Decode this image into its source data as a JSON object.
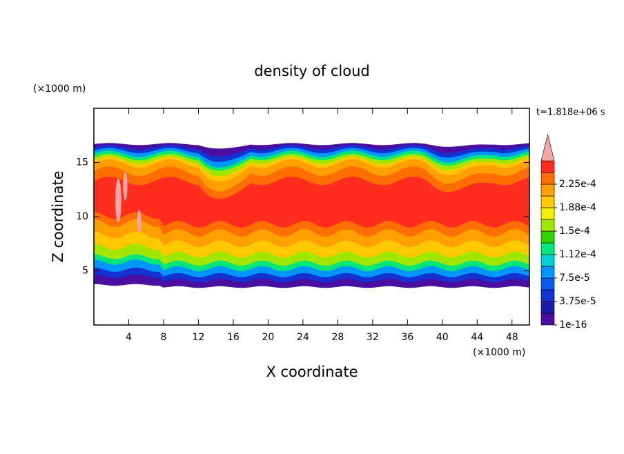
{
  "chart_data": {
    "type": "contour",
    "title": "density of cloud",
    "xlabel": "X coordinate",
    "ylabel": "Z coordinate",
    "x_unit": "(×1000 m)",
    "y_unit": "(×1000 m)",
    "time_label": "t=1.818e+06 s",
    "xlim": [
      0,
      50
    ],
    "ylim": [
      0,
      20
    ],
    "xticks": [
      4,
      8,
      12,
      16,
      20,
      24,
      28,
      32,
      36,
      40,
      44,
      48
    ],
    "yticks": [
      5,
      10,
      15
    ],
    "colorbar": {
      "levels": [
        1e-16,
        1.875e-05,
        3.75e-05,
        5.625e-05,
        7.5e-05,
        9.375e-05,
        0.0001125,
        0.00013125,
        0.00015,
        0.00016875,
        0.0001875,
        0.00020625,
        0.000225,
        0.00024375
      ],
      "colors": [
        "#4a0fa0",
        "#1c1ca8",
        "#1432d2",
        "#0a5af0",
        "#0096ff",
        "#00d2d2",
        "#00e678",
        "#32d200",
        "#a0e600",
        "#f0f000",
        "#ffc800",
        "#ffa000",
        "#ff6e00",
        "#ff2d1e"
      ],
      "extend_color": "#f4a6a6",
      "ticks": [
        {
          "value": 1e-16,
          "label": "1e-16"
        },
        {
          "value": 3.75e-05,
          "label": "3.75e-5"
        },
        {
          "value": 7.5e-05,
          "label": "7.5e-5"
        },
        {
          "value": 0.0001125,
          "label": "1.12e-4"
        },
        {
          "value": 0.00015,
          "label": "1.5e-4"
        },
        {
          "value": 0.0001875,
          "label": "1.88e-4"
        },
        {
          "value": 0.000225,
          "label": "2.25e-4"
        }
      ]
    }
  }
}
